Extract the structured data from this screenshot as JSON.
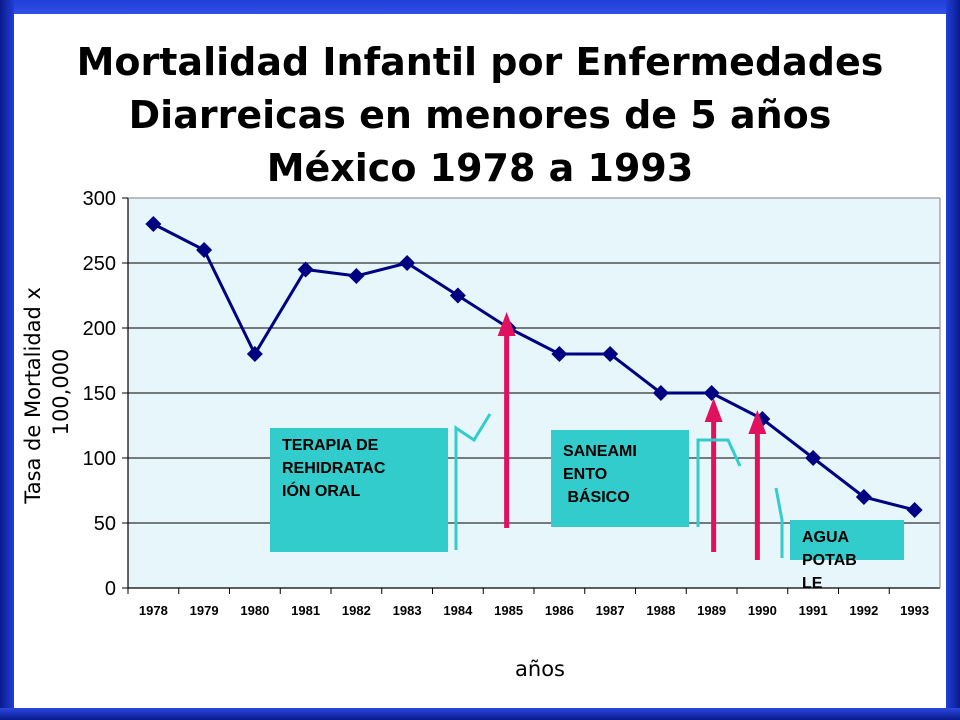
{
  "slide": {
    "title_lines": [
      "Mortalidad Infantil por Enfermedades",
      "Diarreicas en menores de 5 años",
      "México 1978 a 1993"
    ]
  },
  "colors": {
    "frame": "#1f3fd8",
    "plot_bg": "#e6f6fb",
    "series_line": "#000080",
    "arrow": "#e0115f",
    "annotation_box": "#33cccc",
    "bracket": "#33cccc"
  },
  "chart_data": {
    "type": "line",
    "title": "",
    "xlabel": "años",
    "ylabel": "Tasa de Mortalidad x 100,000",
    "ylabel_lines": [
      "Tasa de Mortalidad x",
      "100,000"
    ],
    "ylim": [
      0,
      300
    ],
    "yticks": [
      0,
      50,
      100,
      150,
      200,
      250,
      300
    ],
    "grid": true,
    "legend": "none",
    "categories": [
      "1978",
      "1979",
      "1980",
      "1981",
      "1982",
      "1983",
      "1984",
      "1985",
      "1986",
      "1987",
      "1988",
      "1989",
      "1990",
      "1991",
      "1992",
      "1993"
    ],
    "series": [
      {
        "values": [
          280,
          260,
          180,
          245,
          240,
          250,
          225,
          200,
          180,
          180,
          150,
          150,
          130,
          100,
          70,
          60
        ]
      }
    ],
    "annotations": [
      {
        "lines": [
          "TERAPIA DE",
          "REHIDRATAC",
          "IÓN ORAL"
        ],
        "arrow_at": "1985"
      },
      {
        "lines": [
          "SANEAMI",
          "ENTO",
          " BÁSICO"
        ],
        "arrow_at": "1989"
      },
      {
        "lines": [
          "AGUA",
          "POTAB",
          "LE"
        ],
        "arrow_at": "1990"
      }
    ]
  }
}
